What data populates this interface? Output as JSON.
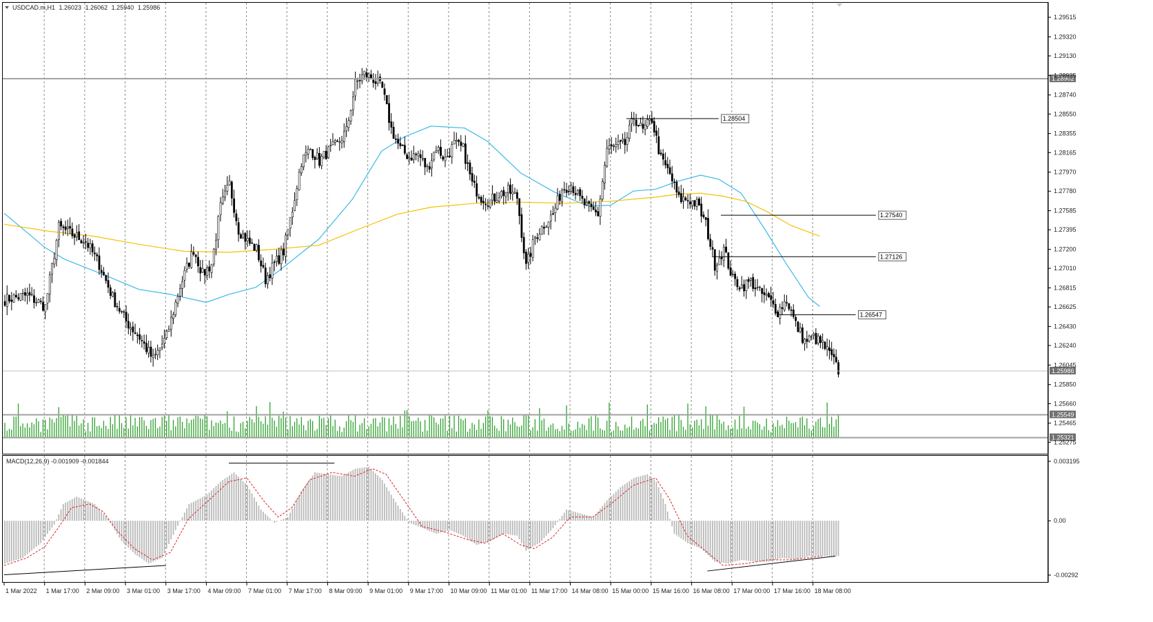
{
  "chart_data": [
    {
      "type": "candlestick",
      "header": {
        "symbol": "USDCAD.m,H1",
        "open": "1.26023",
        "high": "1.26062",
        "low": "1.25940",
        "close": "1.25986"
      },
      "y_axis": {
        "ticks": [
          "1.29515",
          "1.29320",
          "1.29130",
          "1.28935",
          "1.28740",
          "1.28550",
          "1.28355",
          "1.28165",
          "1.27970",
          "1.27780",
          "1.27585",
          "1.27395",
          "1.27200",
          "1.27010",
          "1.26815",
          "1.26625",
          "1.26430",
          "1.26240",
          "1.26045",
          "1.25850",
          "1.25660",
          "1.25465",
          "1.25275"
        ],
        "ylim": [
          1.2516,
          1.2966
        ]
      },
      "x_axis": {
        "ticks": [
          "1 Mar 2022",
          "1 Mar 17:00",
          "2 Mar 09:00",
          "3 Mar 01:00",
          "3 Mar 17:00",
          "4 Mar 09:00",
          "7 Mar 01:00",
          "7 Mar 17:00",
          "8 Mar 09:00",
          "9 Mar 01:00",
          "9 Mar 17:00",
          "10 Mar 09:00",
          "11 Mar 01:00",
          "11 Mar 17:00",
          "14 Mar 08:00",
          "15 Mar 00:00",
          "15 Mar 16:00",
          "16 Mar 08:00",
          "17 Mar 00:00",
          "17 Mar 16:00",
          "18 Mar 08:00"
        ],
        "bars": 372
      },
      "horizontal_levels": [
        {
          "value": 1.28902,
          "label": "1.28902",
          "color": "#a0a0a0"
        },
        {
          "value": 1.25986,
          "label": "1.25986",
          "color": "#c0c0c0"
        },
        {
          "value": 1.25549,
          "label": "1.25549",
          "color": "#a0a0a0"
        },
        {
          "value": 1.25321,
          "label": "1.25321",
          "color": "#a0a0a0"
        }
      ],
      "annotations": [
        {
          "label": "1.28504",
          "value": 1.28504,
          "from_bar": 277,
          "to_bar": 318
        },
        {
          "label": "1.27540",
          "value": 1.2754,
          "from_bar": 319,
          "to_bar": 388
        },
        {
          "label": "1.27126",
          "value": 1.27126,
          "from_bar": 315,
          "to_bar": 388
        },
        {
          "label": "1.26547",
          "value": 1.26547,
          "from_bar": 345,
          "to_bar": 379
        }
      ],
      "series": [
        {
          "style": "moving-average",
          "color": "#3ab8e8",
          "points": [
            [
              0,
              1.2756
            ],
            [
              18,
              1.2722
            ],
            [
              27,
              1.271
            ],
            [
              45,
              1.2694
            ],
            [
              60,
              1.268
            ],
            [
              74,
              1.2675
            ],
            [
              90,
              1.2667
            ],
            [
              100,
              1.2675
            ],
            [
              112,
              1.2682
            ],
            [
              122,
              1.2698
            ],
            [
              140,
              1.273
            ],
            [
              155,
              1.277
            ],
            [
              168,
              1.2818
            ],
            [
              178,
              1.2832
            ],
            [
              190,
              1.2843
            ],
            [
              205,
              1.2841
            ],
            [
              215,
              1.2828
            ],
            [
              230,
              1.2796
            ],
            [
              245,
              1.2777
            ],
            [
              260,
              1.2763
            ],
            [
              270,
              1.2764
            ],
            [
              280,
              1.2778
            ],
            [
              290,
              1.278
            ],
            [
              300,
              1.2788
            ],
            [
              310,
              1.2794
            ],
            [
              318,
              1.279
            ],
            [
              328,
              1.2776
            ],
            [
              338,
              1.2742
            ],
            [
              348,
              1.2706
            ],
            [
              358,
              1.2672
            ],
            [
              363,
              1.2663
            ]
          ]
        },
        {
          "style": "moving-average",
          "color": "#f2c200",
          "points": [
            [
              0,
              1.2745
            ],
            [
              20,
              1.2738
            ],
            [
              40,
              1.2733
            ],
            [
              60,
              1.2725
            ],
            [
              80,
              1.2718
            ],
            [
              100,
              1.2717
            ],
            [
              120,
              1.272
            ],
            [
              140,
              1.2724
            ],
            [
              160,
              1.2742
            ],
            [
              175,
              1.2755
            ],
            [
              190,
              1.2762
            ],
            [
              210,
              1.2766
            ],
            [
              230,
              1.2767
            ],
            [
              250,
              1.2766
            ],
            [
              270,
              1.2768
            ],
            [
              290,
              1.2772
            ],
            [
              300,
              1.2775
            ],
            [
              310,
              1.2776
            ],
            [
              320,
              1.2773
            ],
            [
              330,
              1.2768
            ],
            [
              340,
              1.2757
            ],
            [
              350,
              1.2744
            ],
            [
              363,
              1.2733
            ]
          ]
        }
      ],
      "close_path": [
        [
          0,
          1.267
        ],
        [
          10,
          1.2674
        ],
        [
          18,
          1.2663
        ],
        [
          24,
          1.2742
        ],
        [
          30,
          1.2735
        ],
        [
          36,
          1.2728
        ],
        [
          42,
          1.2705
        ],
        [
          48,
          1.2672
        ],
        [
          54,
          1.2648
        ],
        [
          60,
          1.2632
        ],
        [
          66,
          1.261
        ],
        [
          72,
          1.2633
        ],
        [
          78,
          1.2683
        ],
        [
          84,
          1.272
        ],
        [
          88,
          1.2695
        ],
        [
          92,
          1.2705
        ],
        [
          96,
          1.2762
        ],
        [
          100,
          1.2785
        ],
        [
          104,
          1.274
        ],
        [
          108,
          1.2728
        ],
        [
          112,
          1.272
        ],
        [
          116,
          1.269
        ],
        [
          120,
          1.2705
        ],
        [
          124,
          1.2718
        ],
        [
          128,
          1.276
        ],
        [
          132,
          1.2808
        ],
        [
          136,
          1.282
        ],
        [
          140,
          1.2808
        ],
        [
          144,
          1.2818
        ],
        [
          148,
          1.2825
        ],
        [
          152,
          1.2838
        ],
        [
          156,
          1.2885
        ],
        [
          160,
          1.2895
        ],
        [
          164,
          1.289
        ],
        [
          168,
          1.288
        ],
        [
          172,
          1.284
        ],
        [
          176,
          1.282
        ],
        [
          180,
          1.2812
        ],
        [
          184,
          1.2815
        ],
        [
          188,
          1.28
        ],
        [
          192,
          1.2822
        ],
        [
          196,
          1.281
        ],
        [
          200,
          1.2825
        ],
        [
          204,
          1.282
        ],
        [
          208,
          1.2785
        ],
        [
          212,
          1.2772
        ],
        [
          216,
          1.2768
        ],
        [
          220,
          1.2775
        ],
        [
          224,
          1.2778
        ],
        [
          228,
          1.2772
        ],
        [
          232,
          1.2702
        ],
        [
          236,
          1.2732
        ],
        [
          240,
          1.2745
        ],
        [
          244,
          1.2755
        ],
        [
          248,
          1.278
        ],
        [
          252,
          1.2785
        ],
        [
          256,
          1.277
        ],
        [
          260,
          1.276
        ],
        [
          264,
          1.2755
        ],
        [
          268,
          1.282
        ],
        [
          272,
          1.2822
        ],
        [
          276,
          1.2825
        ],
        [
          280,
          1.2852
        ],
        [
          284,
          1.2838
        ],
        [
          288,
          1.285
        ],
        [
          292,
          1.281
        ],
        [
          296,
          1.2795
        ],
        [
          300,
          1.277
        ],
        [
          304,
          1.277
        ],
        [
          308,
          1.2765
        ],
        [
          312,
          1.2745
        ],
        [
          316,
          1.2705
        ],
        [
          320,
          1.272
        ],
        [
          324,
          1.269
        ],
        [
          328,
          1.2683
        ],
        [
          332,
          1.2688
        ],
        [
          336,
          1.2677
        ],
        [
          340,
          1.267
        ],
        [
          344,
          1.2658
        ],
        [
          348,
          1.267
        ],
        [
          352,
          1.2645
        ],
        [
          356,
          1.2628
        ],
        [
          360,
          1.2632
        ],
        [
          364,
          1.2625
        ],
        [
          368,
          1.2612
        ],
        [
          371,
          1.2599
        ]
      ],
      "volume_range": [
        1.25321,
        1.25549
      ]
    },
    {
      "type": "macd",
      "title": "MACD(12,26,9) -0.001909 -0.001844",
      "y_axis": {
        "ticks": [
          "0.003195",
          "0.00",
          "-0.00292"
        ],
        "ylim": [
          -0.00292,
          0.003195
        ]
      },
      "histogram_color": "#b8b8b8",
      "signal_color": "#e02020",
      "histogram": [
        [
          0,
          -0.0023
        ],
        [
          8,
          -0.002
        ],
        [
          16,
          -0.0012
        ],
        [
          22,
          -0.0002
        ],
        [
          26,
          0.0009
        ],
        [
          32,
          0.0013
        ],
        [
          40,
          0.0009
        ],
        [
          46,
          0.0001
        ],
        [
          52,
          -0.0011
        ],
        [
          58,
          -0.0018
        ],
        [
          64,
          -0.0023
        ],
        [
          70,
          -0.002
        ],
        [
          76,
          -0.0005
        ],
        [
          82,
          0.0009
        ],
        [
          90,
          0.0014
        ],
        [
          96,
          0.0021
        ],
        [
          102,
          0.0026
        ],
        [
          108,
          0.0019
        ],
        [
          114,
          0.0006
        ],
        [
          120,
          -0.0001
        ],
        [
          126,
          0.0002
        ],
        [
          132,
          0.0016
        ],
        [
          138,
          0.0026
        ],
        [
          144,
          0.0025
        ],
        [
          150,
          0.0024
        ],
        [
          156,
          0.0028
        ],
        [
          162,
          0.0029
        ],
        [
          168,
          0.0022
        ],
        [
          174,
          0.001
        ],
        [
          180,
          -0.0001
        ],
        [
          186,
          -0.0004
        ],
        [
          192,
          -0.0007
        ],
        [
          198,
          -0.0005
        ],
        [
          204,
          -0.0008
        ],
        [
          210,
          -0.0013
        ],
        [
          216,
          -0.0011
        ],
        [
          222,
          -0.0007
        ],
        [
          228,
          -0.0008
        ],
        [
          232,
          -0.0016
        ],
        [
          238,
          -0.0012
        ],
        [
          244,
          -0.0004
        ],
        [
          250,
          0.0006
        ],
        [
          256,
          0.0004
        ],
        [
          262,
          0.0002
        ],
        [
          268,
          0.0011
        ],
        [
          274,
          0.0018
        ],
        [
          280,
          0.0023
        ],
        [
          286,
          0.0025
        ],
        [
          290,
          0.0021
        ],
        [
          294,
          0.0009
        ],
        [
          298,
          -0.0007
        ],
        [
          304,
          -0.0012
        ],
        [
          310,
          -0.0015
        ],
        [
          316,
          -0.0022
        ],
        [
          322,
          -0.0023
        ],
        [
          328,
          -0.0021
        ],
        [
          334,
          -0.0022
        ],
        [
          340,
          -0.0022
        ],
        [
          346,
          -0.002
        ],
        [
          352,
          -0.0021
        ],
        [
          358,
          -0.0019
        ],
        [
          364,
          -0.0019
        ]
      ],
      "signal": [
        [
          0,
          -0.0024
        ],
        [
          10,
          -0.002
        ],
        [
          18,
          -0.0014
        ],
        [
          24,
          -0.0004
        ],
        [
          30,
          0.0007
        ],
        [
          38,
          0.0009
        ],
        [
          44,
          0.0005
        ],
        [
          50,
          -0.0005
        ],
        [
          58,
          -0.0015
        ],
        [
          66,
          -0.0021
        ],
        [
          74,
          -0.0017
        ],
        [
          82,
          0.0001
        ],
        [
          92,
          0.0012
        ],
        [
          100,
          0.0021
        ],
        [
          108,
          0.0023
        ],
        [
          116,
          0.001
        ],
        [
          122,
          0.0002
        ],
        [
          128,
          0.0007
        ],
        [
          136,
          0.0022
        ],
        [
          146,
          0.0026
        ],
        [
          156,
          0.0024
        ],
        [
          164,
          0.0028
        ],
        [
          170,
          0.0025
        ],
        [
          178,
          0.0011
        ],
        [
          186,
          -0.0003
        ],
        [
          196,
          -0.0006
        ],
        [
          206,
          -0.001
        ],
        [
          214,
          -0.0012
        ],
        [
          222,
          -0.0007
        ],
        [
          230,
          -0.0013
        ],
        [
          236,
          -0.0015
        ],
        [
          244,
          -0.0009
        ],
        [
          252,
          0.0002
        ],
        [
          262,
          0.0002
        ],
        [
          270,
          0.0009
        ],
        [
          280,
          0.0019
        ],
        [
          290,
          0.0023
        ],
        [
          296,
          0.0012
        ],
        [
          304,
          -0.0008
        ],
        [
          312,
          -0.0016
        ],
        [
          320,
          -0.0024
        ],
        [
          330,
          -0.0023
        ],
        [
          340,
          -0.0021
        ],
        [
          350,
          -0.0021
        ],
        [
          364,
          -0.0019
        ]
      ],
      "trendlines": [
        [
          [
            0,
            -0.0029
          ],
          [
            72,
            -0.0024
          ]
        ],
        [
          [
            100,
            0.0031
          ],
          [
            147,
            0.0031
          ]
        ],
        [
          [
            313,
            -0.0027
          ],
          [
            370,
            -0.0019
          ]
        ]
      ]
    }
  ]
}
